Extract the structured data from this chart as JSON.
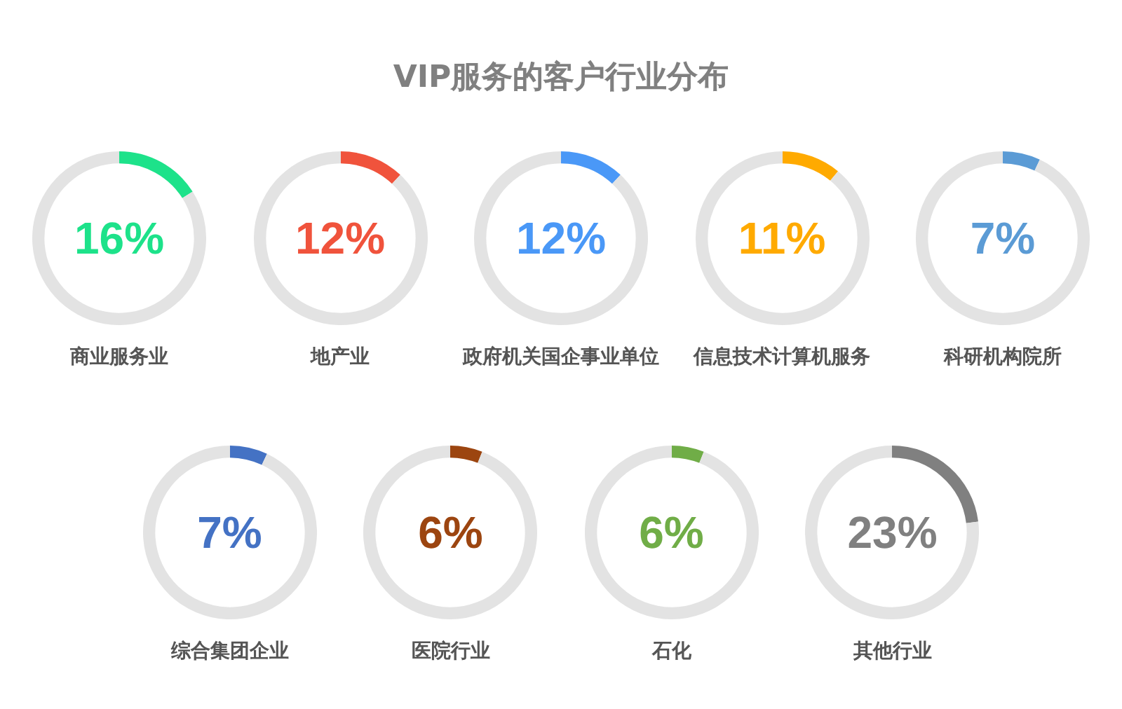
{
  "chart_data": [
    {
      "type": "donut",
      "categories": [
        null,
        null
      ],
      "values": [
        16,
        84
      ],
      "colors": [
        "#1de28a",
        "#e3e3e3"
      ],
      "annotations": [
        "16%",
        "商业服务业"
      ]
    },
    {
      "type": "donut",
      "categories": [
        null,
        null
      ],
      "values": [
        12,
        88
      ],
      "colors": [
        "#f0533c",
        "#e3e3e3"
      ],
      "annotations": [
        "12%",
        "地产业"
      ]
    },
    {
      "type": "donut",
      "title": "VIP服务的客户行业分布",
      "categories": [
        null,
        null
      ],
      "values": [
        12,
        88
      ],
      "colors": [
        "#4a98f7",
        "#e3e3e3"
      ],
      "annotations": [
        "12%",
        "政府机关国企事业单位"
      ]
    },
    {
      "type": "donut",
      "categories": [
        null,
        null
      ],
      "values": [
        11,
        89
      ],
      "colors": [
        "#ffaa00",
        "#e3e3e3"
      ],
      "annotations": [
        "11%",
        "信息技术计算机服务"
      ]
    },
    {
      "type": "donut",
      "categories": [
        null,
        null
      ],
      "values": [
        7,
        93
      ],
      "colors": [
        "#5b9bd5",
        "#e3e3e3"
      ],
      "annotations": [
        "7%",
        "科研机构院所"
      ]
    },
    {
      "type": "donut",
      "categories": [
        null,
        null
      ],
      "values": [
        7,
        93
      ],
      "colors": [
        "#4472c4",
        "#e3e3e3"
      ],
      "annotations": [
        "7%",
        "综合集团企业"
      ]
    },
    {
      "type": "donut",
      "categories": [
        null,
        null
      ],
      "values": [
        6,
        94
      ],
      "colors": [
        "#9c4510",
        "#e3e3e3"
      ],
      "annotations": [
        "6%",
        "医院行业"
      ]
    },
    {
      "type": "donut",
      "categories": [
        null,
        null
      ],
      "values": [
        6,
        94
      ],
      "colors": [
        "#70ad47",
        "#e3e3e3"
      ],
      "annotations": [
        "6%",
        "石化"
      ]
    },
    {
      "type": "donut",
      "categories": [
        null,
        null
      ],
      "values": [
        23,
        77
      ],
      "colors": [
        "#808080",
        "#e3e3e3"
      ],
      "annotations": [
        "23%",
        "其他行业"
      ]
    }
  ]
}
